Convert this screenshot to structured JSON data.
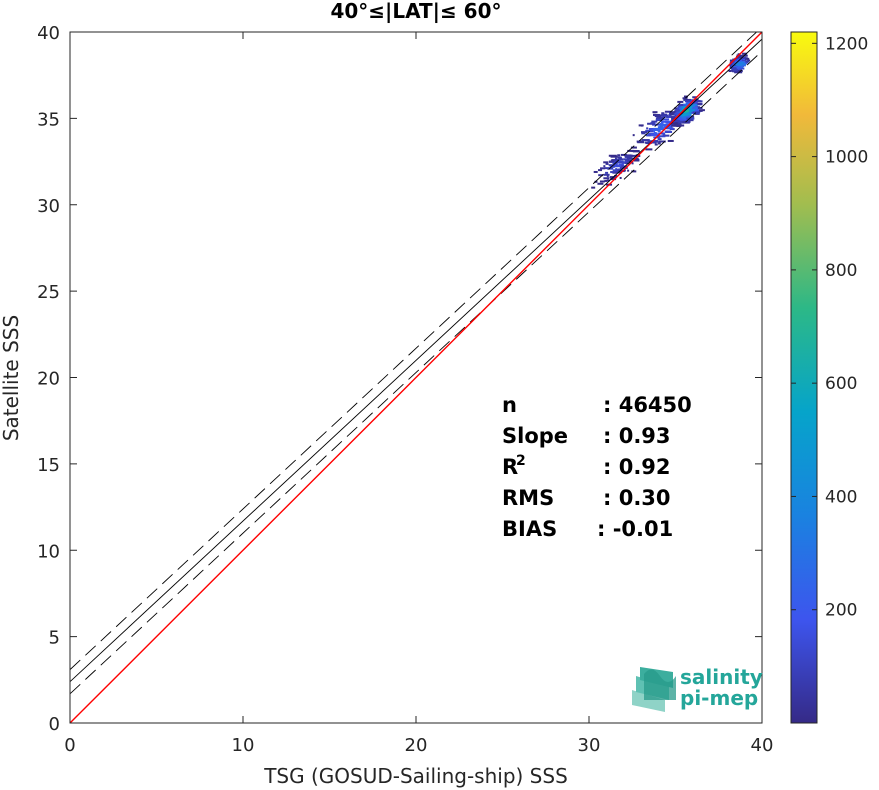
{
  "chart_data": {
    "type": "scatter",
    "title": "40°≤|LAT|≤ 60°",
    "xlabel": "TSG (GOSUD-Sailing-ship) SSS",
    "ylabel": "Satellite SSS",
    "xlim": [
      0,
      40
    ],
    "ylim": [
      0,
      40
    ],
    "x_ticks": [
      "0",
      "10",
      "20",
      "30",
      "40"
    ],
    "y_ticks": [
      "0",
      "5",
      "10",
      "15",
      "20",
      "25",
      "30",
      "35",
      "40"
    ],
    "grid": false,
    "colorbar": {
      "range": [
        0,
        1220
      ],
      "ticks": [
        "200",
        "400",
        "600",
        "800",
        "1000",
        "1200"
      ],
      "colormap": "parula"
    },
    "lines": {
      "one_to_one": {
        "color": "#ff0000",
        "slope": 1,
        "intercept": 0
      },
      "fit": {
        "color": "#000000",
        "slope": 0.93,
        "intercept": 2.39
      },
      "fit_upper": {
        "color": "#000000",
        "slope": 0.93,
        "intercept": 3.09,
        "style": "dashed"
      },
      "fit_lower": {
        "color": "#000000",
        "slope": 0.93,
        "intercept": 1.69,
        "style": "dashed"
      }
    },
    "density_clusters": [
      {
        "x": 31.5,
        "y": 32.3,
        "spread_x": 1.2,
        "spread_y": 0.6,
        "peak": 150
      },
      {
        "x": 34.0,
        "y": 34.5,
        "spread_x": 1.3,
        "spread_y": 0.9,
        "peak": 250
      },
      {
        "x": 35.5,
        "y": 35.5,
        "spread_x": 0.7,
        "spread_y": 0.6,
        "peak": 700
      },
      {
        "x": 38.5,
        "y": 38.2,
        "spread_x": 0.4,
        "spread_y": 0.4,
        "peak": 400
      }
    ],
    "stats": [
      {
        "label": "n",
        "value": ": 46450"
      },
      {
        "label": "Slope",
        "value": ": 0.93"
      },
      {
        "label": "R",
        "sup": "2",
        "value": ": 0.92"
      },
      {
        "label": "RMS",
        "value": ": 0.30"
      },
      {
        "label": "BIAS",
        "value": ": -0.01"
      }
    ]
  },
  "logo": {
    "line1": "salinity",
    "line2": "pi-mep"
  }
}
